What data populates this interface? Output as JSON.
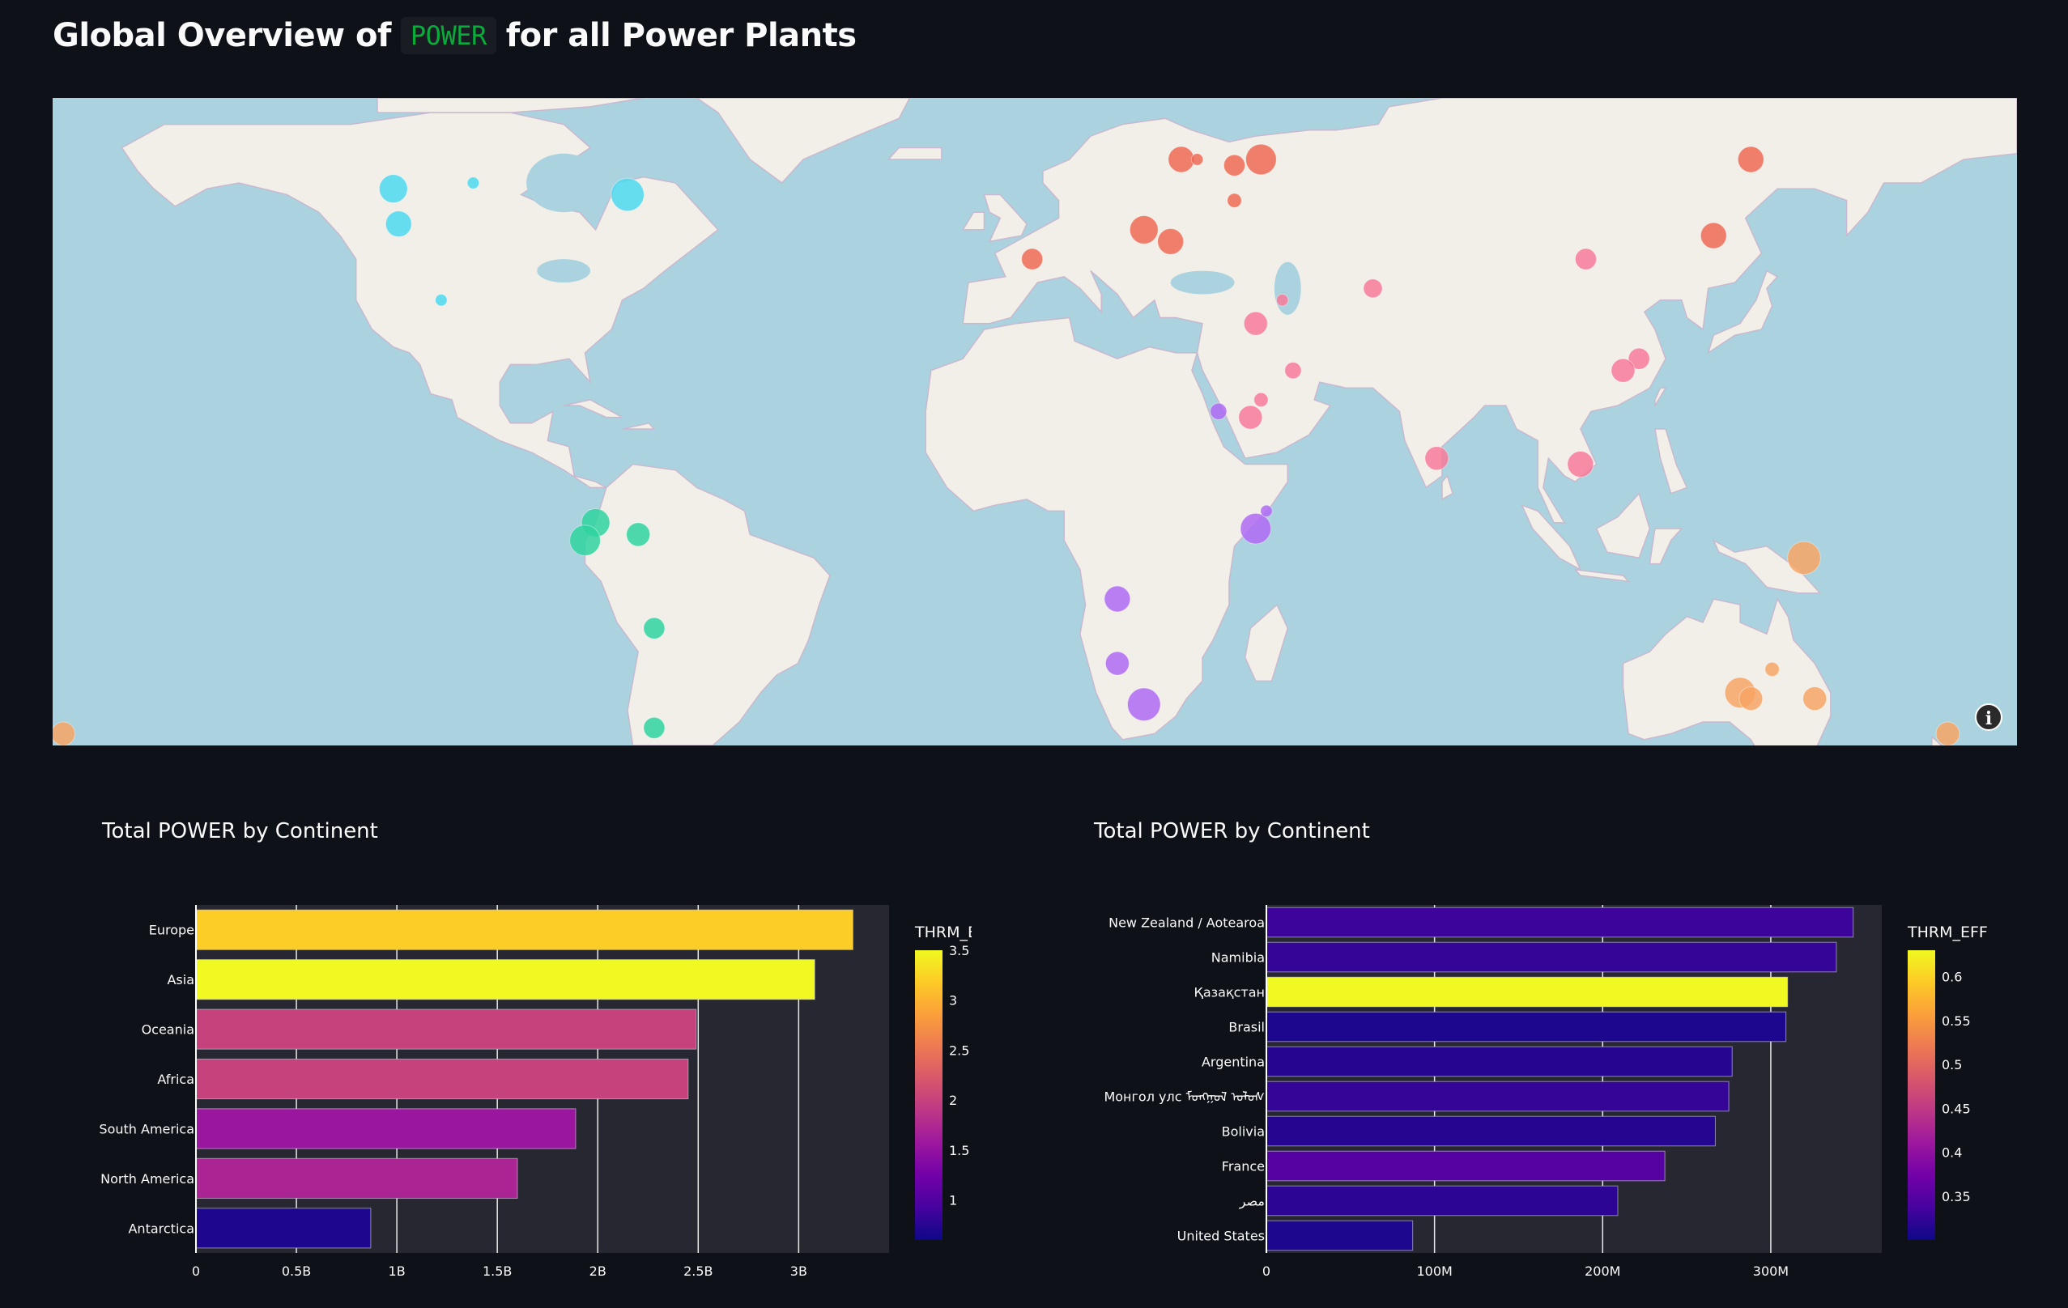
{
  "page": {
    "title_prefix": "Global Overview of",
    "title_code": "POWER",
    "title_suffix": "for all Power Plants",
    "info_icon": "info-icon"
  },
  "map": {
    "type": "scatter_geo",
    "continent_colors": {
      "North America": "#4dd8f0",
      "South America": "#2fd4a0",
      "Europe": "#ee6a55",
      "Asia": "#f77a9a",
      "Africa": "#b06af5",
      "Oceania": "#f7a465"
    },
    "land_color": "#f2efe9",
    "water_color": "#aad3df",
    "points": [
      {
        "lon": -117,
        "lat": 59,
        "size": 12,
        "continent": "North America"
      },
      {
        "lon": -116,
        "lat": 53,
        "size": 11,
        "continent": "North America"
      },
      {
        "lon": -102,
        "lat": 60,
        "size": 5,
        "continent": "North America"
      },
      {
        "lon": -73,
        "lat": 58,
        "size": 14,
        "continent": "North America"
      },
      {
        "lon": -108,
        "lat": 40,
        "size": 5,
        "continent": "North America"
      },
      {
        "lon": -79,
        "lat": 2,
        "size": 12,
        "continent": "South America"
      },
      {
        "lon": -81,
        "lat": -1,
        "size": 13,
        "continent": "South America"
      },
      {
        "lon": -71,
        "lat": 0,
        "size": 10,
        "continent": "South America"
      },
      {
        "lon": -68,
        "lat": -16,
        "size": 9,
        "continent": "South America"
      },
      {
        "lon": -68,
        "lat": -33,
        "size": 9,
        "continent": "South America"
      },
      {
        "lon": 31,
        "lat": 64,
        "size": 11,
        "continent": "Europe"
      },
      {
        "lon": 34,
        "lat": 64,
        "size": 5,
        "continent": "Europe"
      },
      {
        "lon": 41,
        "lat": 63,
        "size": 9,
        "continent": "Europe"
      },
      {
        "lon": 46,
        "lat": 64,
        "size": 13,
        "continent": "Europe"
      },
      {
        "lon": 41,
        "lat": 57,
        "size": 6,
        "continent": "Europe"
      },
      {
        "lon": 24,
        "lat": 52,
        "size": 12,
        "continent": "Europe"
      },
      {
        "lon": 29,
        "lat": 50,
        "size": 11,
        "continent": "Europe"
      },
      {
        "lon": 3,
        "lat": 47,
        "size": 9,
        "continent": "Europe"
      },
      {
        "lon": 138,
        "lat": 64,
        "size": 11,
        "continent": "Europe"
      },
      {
        "lon": 131,
        "lat": 51,
        "size": 11,
        "continent": "Europe"
      },
      {
        "lon": 107,
        "lat": 47,
        "size": 9,
        "continent": "Asia"
      },
      {
        "lon": 67,
        "lat": 42,
        "size": 8,
        "continent": "Asia"
      },
      {
        "lon": 50,
        "lat": 40,
        "size": 5,
        "continent": "Asia"
      },
      {
        "lon": 45,
        "lat": 36,
        "size": 10,
        "continent": "Asia"
      },
      {
        "lon": 52,
        "lat": 28,
        "size": 7,
        "continent": "Asia"
      },
      {
        "lon": 46,
        "lat": 23,
        "size": 6,
        "continent": "Asia"
      },
      {
        "lon": 44,
        "lat": 20,
        "size": 10,
        "continent": "Asia"
      },
      {
        "lon": 79,
        "lat": 13,
        "size": 10,
        "continent": "Asia"
      },
      {
        "lon": 106,
        "lat": 12,
        "size": 11,
        "continent": "Asia"
      },
      {
        "lon": 117,
        "lat": 30,
        "size": 9,
        "continent": "Asia"
      },
      {
        "lon": 114,
        "lat": 28,
        "size": 10,
        "continent": "Asia"
      },
      {
        "lon": 38,
        "lat": 21,
        "size": 7,
        "continent": "Africa"
      },
      {
        "lon": 45,
        "lat": 1,
        "size": 13,
        "continent": "Africa"
      },
      {
        "lon": 47,
        "lat": 4,
        "size": 5,
        "continent": "Africa"
      },
      {
        "lon": 19,
        "lat": -11,
        "size": 11,
        "continent": "Africa"
      },
      {
        "lon": 19,
        "lat": -22,
        "size": 10,
        "continent": "Africa"
      },
      {
        "lon": 24,
        "lat": -29,
        "size": 14,
        "continent": "Africa"
      },
      {
        "lon": 148,
        "lat": -4,
        "size": 14,
        "continent": "Oceania"
      },
      {
        "lon": 142,
        "lat": -23,
        "size": 6,
        "continent": "Oceania"
      },
      {
        "lon": 136,
        "lat": -27,
        "size": 13,
        "continent": "Oceania"
      },
      {
        "lon": 138,
        "lat": -28,
        "size": 10,
        "continent": "Oceania"
      },
      {
        "lon": 150,
        "lat": -28,
        "size": 10,
        "continent": "Oceania"
      },
      {
        "lon": 175,
        "lat": -34,
        "size": 10,
        "continent": "Oceania"
      },
      {
        "lon": -179,
        "lat": -34,
        "size": 10,
        "continent": "Oceania"
      }
    ]
  },
  "chart_data": [
    {
      "type": "bar",
      "orientation": "horizontal",
      "title": "Total POWER by Continent",
      "categories": [
        "Europe",
        "Asia",
        "Oceania",
        "Africa",
        "South America",
        "North America",
        "Antarctica"
      ],
      "values": [
        3270000000,
        3080000000,
        2490000000,
        2450000000,
        1890000000,
        1600000000,
        870000000
      ],
      "color_values": [
        3.2,
        3.5,
        2.0,
        2.0,
        1.55,
        1.7,
        0.7
      ],
      "colorbar": {
        "title": "THRM_EFF",
        "min": 0.6,
        "max": 3.5,
        "ticks": [
          1,
          1.5,
          2,
          2.5,
          3,
          3.5
        ],
        "tick_labels": [
          "1",
          "1.5",
          "2",
          "2.5",
          "3",
          "3.5"
        ]
      },
      "xaxis": {
        "min": 0,
        "max": 3450000000,
        "ticks": [
          0,
          500000000,
          1000000000,
          1500000000,
          2000000000,
          2500000000,
          3000000000
        ],
        "tick_labels": [
          "0",
          "0.5B",
          "1B",
          "1.5B",
          "2B",
          "2.5B",
          "3B"
        ]
      },
      "grid": true,
      "colorscale": "plasma"
    },
    {
      "type": "bar",
      "orientation": "horizontal",
      "title": "Total POWER by Continent",
      "categories": [
        "New Zealand / Aotearoa",
        "Namibia",
        "Қазақстан",
        "Brasil",
        "Argentina",
        "Монгол улс ᠮᠣᠩᠭᠣᠯ ᠤᠯᠤᠰ",
        "Bolivia",
        "France",
        "مصر",
        "United States"
      ],
      "values": [
        349000000,
        339000000,
        310000000,
        309000000,
        277000000,
        275000000,
        267000000,
        237000000,
        209000000,
        87000000
      ],
      "color_values": [
        0.33,
        0.325,
        0.63,
        0.31,
        0.315,
        0.325,
        0.315,
        0.35,
        0.32,
        0.31
      ],
      "colorbar": {
        "title": "THRM_EFF",
        "min": 0.3,
        "max": 0.63,
        "ticks": [
          0.35,
          0.4,
          0.45,
          0.5,
          0.55,
          0.6
        ],
        "tick_labels": [
          "0.35",
          "0.4",
          "0.45",
          "0.5",
          "0.55",
          "0.6"
        ]
      },
      "xaxis": {
        "min": 0,
        "max": 366000000,
        "ticks": [
          0,
          100000000,
          200000000,
          300000000
        ],
        "tick_labels": [
          "0",
          "100M",
          "200M",
          "300M"
        ]
      },
      "grid": true,
      "colorscale": "plasma"
    }
  ]
}
